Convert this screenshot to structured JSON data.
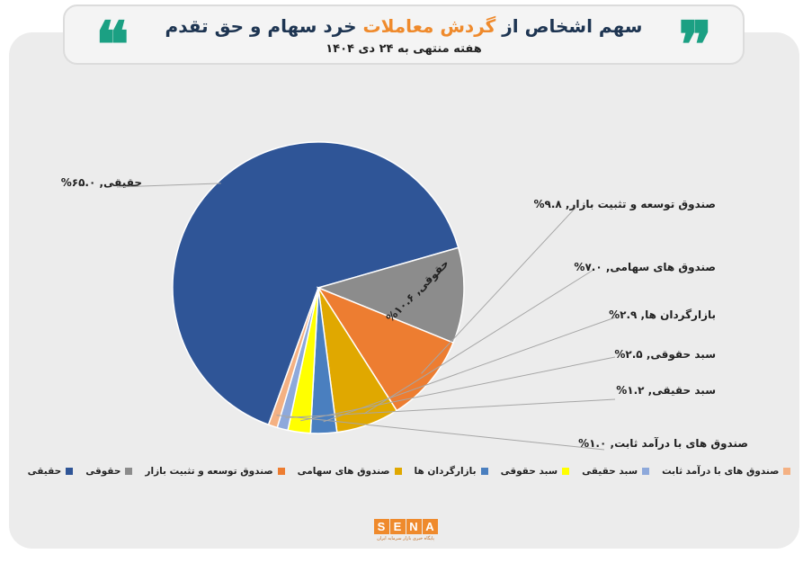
{
  "header": {
    "title_before": "سهم اشخاص از",
    "title_highlight": "گردش معاملات",
    "title_after": "خرد سهام و حق تقدم",
    "subtitle": "هفته منتهی به ۲۴ دی ۱۴۰۴",
    "quote_left": "❝",
    "quote_right": "❞",
    "highlight_color": "#ef8a2c",
    "title_color": "#1e3552",
    "quote_color": "#1ba083"
  },
  "chart_data": {
    "type": "pie",
    "title": "",
    "unit": "%",
    "series": [
      {
        "name": "حقیقی",
        "value": 65.0,
        "label": "حقیقی, ۶۵.۰%",
        "color": "#2f5597"
      },
      {
        "name": "حقوقی",
        "value": 10.6,
        "label": "حقوقی, ۱۰.۶%",
        "color": "#8c8c8c"
      },
      {
        "name": "صندوق توسعه و تثبیت بازار",
        "value": 9.8,
        "label": "صندوق توسعه و تثبیت بازار, ۹.۸%",
        "color": "#ed7d31"
      },
      {
        "name": "صندوق های سهامی",
        "value": 7.0,
        "label": "صندوق های سهامی, ۷.۰%",
        "color": "#e0a800"
      },
      {
        "name": "بازارگردان ها",
        "value": 2.9,
        "label": "بازارگردان ها, ۲.۹%",
        "color": "#4a7fbf"
      },
      {
        "name": "سبد حقوقی",
        "value": 2.5,
        "label": "سبد حقوقی, ۲.۵%",
        "color": "#ffff00"
      },
      {
        "name": "سبد حقیقی",
        "value": 1.2,
        "label": "سبد حقیقی, ۱.۲%",
        "color": "#8ea9db"
      },
      {
        "name": "صندوق های با درآمد ثابت",
        "value": 1.0,
        "label": "صندوق های با درآمد ثابت, ۱.۰%",
        "color": "#f4b183"
      }
    ],
    "legend_position": "bottom"
  },
  "logo": {
    "letters": [
      "S",
      "E",
      "N",
      "A"
    ],
    "tagline": "پایگاه خبری بازار سرمایه ایران",
    "color": "#ef8a2c"
  }
}
